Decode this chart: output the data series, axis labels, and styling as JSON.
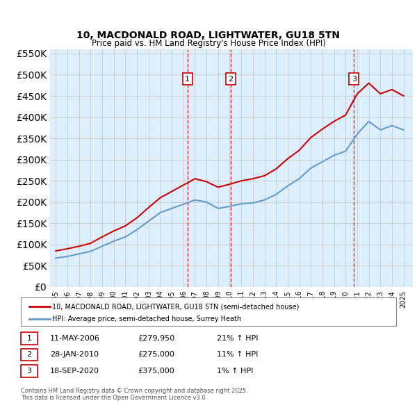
{
  "title": "10, MACDONALD ROAD, LIGHTWATER, GU18 5TN",
  "subtitle": "Price paid vs. HM Land Registry's House Price Index (HPI)",
  "legend_line1": "10, MACDONALD ROAD, LIGHTWATER, GU18 5TN (semi-detached house)",
  "legend_line2": "HPI: Average price, semi-detached house, Surrey Heath",
  "footer": "Contains HM Land Registry data © Crown copyright and database right 2025.\nThis data is licensed under the Open Government Licence v3.0.",
  "transactions": [
    {
      "label": "1",
      "date": "11-MAY-2006",
      "price": "£279,950",
      "pct": "21%",
      "dir": "↑",
      "x_year": 2006.36
    },
    {
      "label": "2",
      "date": "28-JAN-2010",
      "price": "£275,000",
      "pct": "11%",
      "dir": "↑",
      "x_year": 2010.08
    },
    {
      "label": "3",
      "date": "18-SEP-2020",
      "price": "£375,000",
      "pct": "1%",
      "dir": "↑",
      "x_year": 2020.72
    }
  ],
  "hpi_years": [
    1995,
    1996,
    1997,
    1998,
    1999,
    2000,
    2001,
    2002,
    2003,
    2004,
    2005,
    2006,
    2007,
    2008,
    2009,
    2010,
    2011,
    2012,
    2013,
    2014,
    2015,
    2016,
    2017,
    2018,
    2019,
    2020,
    2021,
    2022,
    2023,
    2024,
    2025
  ],
  "hpi_values": [
    68000,
    72000,
    78000,
    84000,
    96000,
    108000,
    118000,
    135000,
    155000,
    175000,
    185000,
    195000,
    205000,
    200000,
    185000,
    190000,
    196000,
    198000,
    205000,
    218000,
    238000,
    255000,
    280000,
    295000,
    310000,
    320000,
    360000,
    390000,
    370000,
    380000,
    370000
  ],
  "price_years": [
    1995,
    1996,
    1997,
    1998,
    1999,
    2000,
    2001,
    2002,
    2003,
    2004,
    2005,
    2006,
    2007,
    2008,
    2009,
    2010,
    2011,
    2012,
    2013,
    2014,
    2015,
    2016,
    2017,
    2018,
    2019,
    2020,
    2021,
    2022,
    2023,
    2024,
    2025
  ],
  "price_values": [
    85000,
    90000,
    96000,
    103000,
    118000,
    132000,
    144000,
    163000,
    187000,
    210000,
    225000,
    240000,
    255000,
    248000,
    235000,
    242000,
    250000,
    255000,
    262000,
    278000,
    302000,
    322000,
    352000,
    372000,
    390000,
    405000,
    455000,
    480000,
    455000,
    465000,
    450000
  ],
  "ylim": [
    0,
    560000
  ],
  "yticks": [
    0,
    50000,
    100000,
    150000,
    200000,
    250000,
    300000,
    350000,
    400000,
    450000,
    500000,
    550000
  ],
  "xlim": [
    1994.5,
    2025.8
  ],
  "red_color": "#cc0000",
  "blue_color": "#6699cc",
  "bg_color": "#ddeeff",
  "grid_color": "#cccccc",
  "dashed_color": "#cc0000"
}
